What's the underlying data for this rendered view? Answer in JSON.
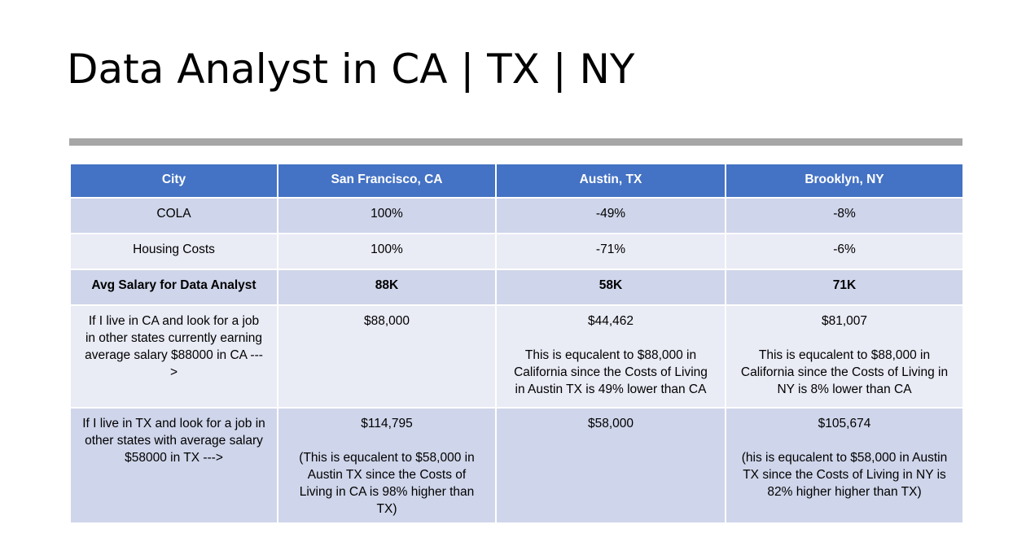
{
  "slide": {
    "title": "Data Analyst in CA | TX | NY"
  },
  "table": {
    "headers": [
      "City",
      "San Francisco, CA",
      "Austin, TX",
      "Brooklyn, NY"
    ],
    "rows": [
      {
        "label": "COLA",
        "values": [
          "100%",
          "-49%",
          "-8%"
        ]
      },
      {
        "label": "Housing Costs",
        "values": [
          "100%",
          "-71%",
          "-6%"
        ]
      },
      {
        "label": "Avg Salary for Data Analyst",
        "values": [
          "88K",
          "58K",
          "71K"
        ]
      },
      {
        "label": "If I live in CA and look for a job in other states currently earning average salary $88000 in CA --->",
        "cells": [
          {
            "value": "$88,000",
            "note": ""
          },
          {
            "value": "$44,462",
            "note": "This is equcalent to $88,000 in California since the Costs of Living in Austin TX  is 49% lower than CA"
          },
          {
            "value": "$81,007",
            "note": "This is equcalent to $88,000 in California since the Costs of Living in NY is 8% lower than CA"
          }
        ]
      },
      {
        "label": "If I live in TX and look for a job in other states  with average salary  $58000 in TX  --->",
        "cells": [
          {
            "value": "$114,795",
            "note": "(This is equcalent to $58,000 in Austin TX since the  Costs of Living in CA is 98% higher than TX)"
          },
          {
            "value": "$58,000",
            "note": ""
          },
          {
            "value": "$105,674",
            "note": "(his is equcalent to $58,000 in Austin TX since the  Costs of Living in NY is 82% higher higher than TX)"
          }
        ]
      }
    ]
  },
  "colors": {
    "header_bg": "#4472c4",
    "band_dark": "#cfd5ea",
    "band_light": "#e9ebf5",
    "rule": "#a6a6a6"
  }
}
